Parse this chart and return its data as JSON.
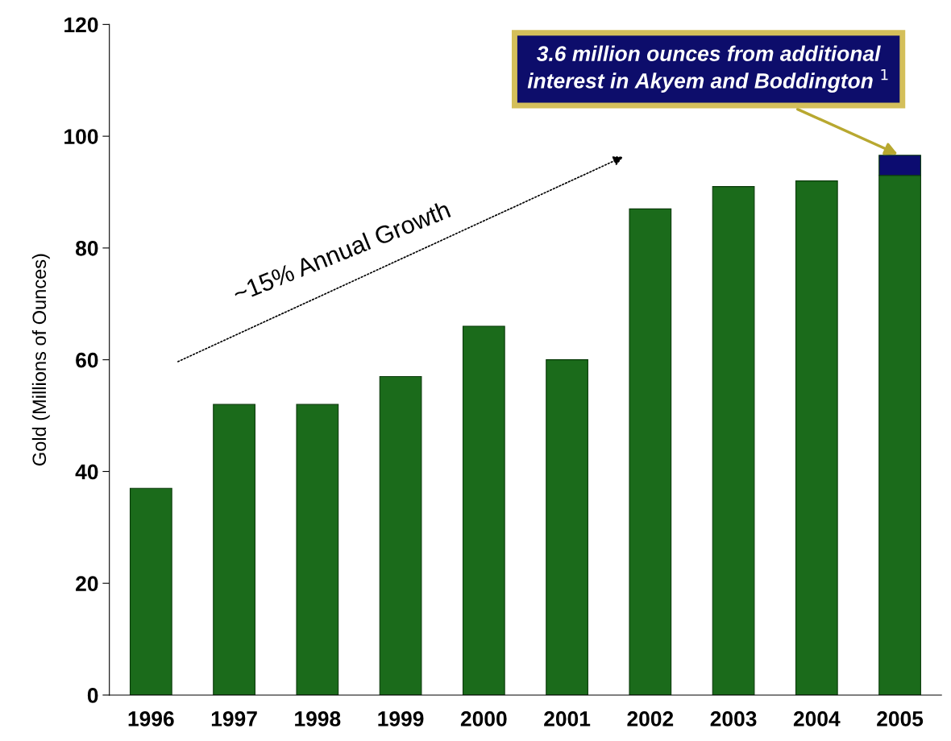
{
  "chart_data": {
    "type": "bar",
    "stacked": true,
    "ylabel": "Gold (Millions of Ounces)",
    "categories": [
      "1996",
      "1997",
      "1998",
      "1999",
      "2000",
      "2001",
      "2002",
      "2003",
      "2004",
      "2005"
    ],
    "series": [
      {
        "color": "#1b6b1b",
        "values": [
          37,
          52,
          52,
          57,
          66,
          60,
          87,
          91,
          92,
          93
        ]
      },
      {
        "color": "#0c0c70",
        "values": [
          null,
          null,
          null,
          null,
          null,
          null,
          null,
          null,
          null,
          3.6
        ]
      }
    ],
    "ylim": [
      0,
      120
    ],
    "yticks": [
      0,
      20,
      40,
      60,
      80,
      100,
      120
    ],
    "grid": false,
    "legend": false,
    "annotations": [
      {
        "text": "3.6 million ounces from additional\ninterest in Akyem and Boddington $^{1}$",
        "x": "2005",
        "y": 96.6
      },
      "~15% Annual Growth"
    ]
  }
}
